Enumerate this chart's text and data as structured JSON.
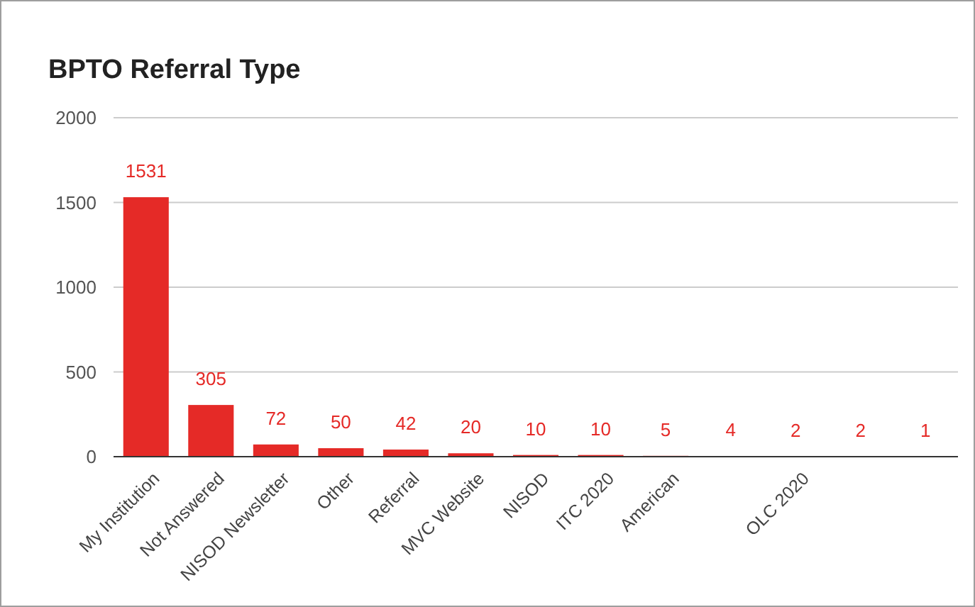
{
  "chart_data": {
    "type": "bar",
    "title": "BPTO Referral Type",
    "categories": [
      "My Institution",
      "Not Answered",
      "NISOD Newsletter",
      "Other",
      "Referral",
      "MVC Website",
      "NISOD",
      "ITC 2020",
      "American",
      null,
      "OLC 2020",
      null,
      null
    ],
    "values": [
      1531,
      305,
      72,
      50,
      42,
      20,
      10,
      10,
      5,
      4,
      2,
      2,
      1
    ],
    "color": "#e52a27",
    "ylim": [
      0,
      2000
    ],
    "yticks": [
      0,
      500,
      1000,
      1500,
      2000
    ],
    "grid": "y",
    "data_labels": true
  }
}
